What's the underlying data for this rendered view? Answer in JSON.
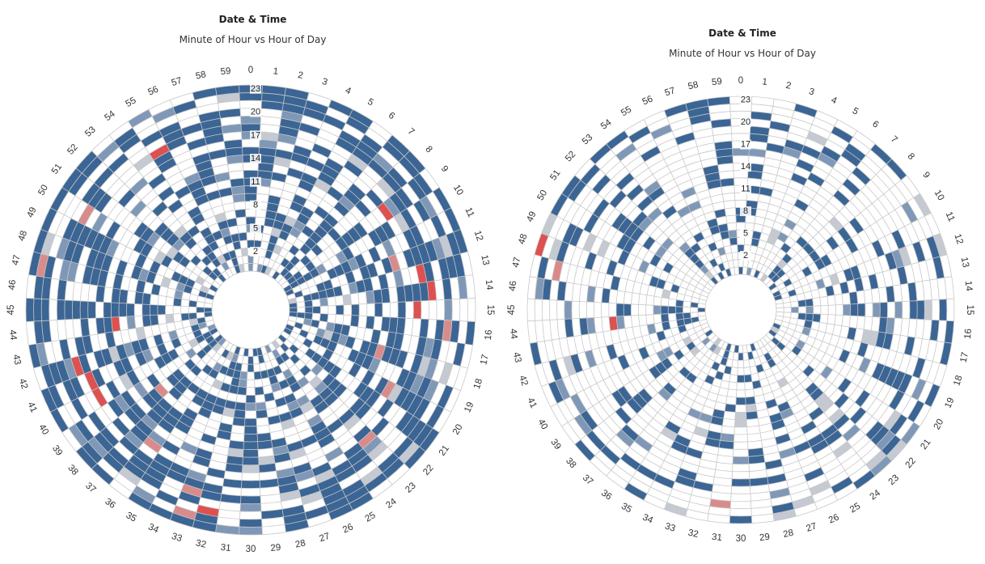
{
  "colors": {
    "dark": "#3b6594",
    "mid": "#7f98b7",
    "light": "#c4c9d2",
    "red": "#dd5150",
    "pink": "#d98b8b",
    "grid": "#c8c8c8",
    "background": "#ffffff"
  },
  "chart_data": [
    {
      "type": "heatmap",
      "subtype": "radial",
      "title": "Date & Time",
      "subtitle": "Minute of Hour vs Hour of Day",
      "angular_axis": "Minute of Hour",
      "radial_axis": "Hour of Day",
      "angular_ticks": [
        "0",
        "1",
        "2",
        "3",
        "4",
        "5",
        "6",
        "7",
        "8",
        "9",
        "10",
        "11",
        "12",
        "13",
        "14",
        "15",
        "16",
        "17",
        "18",
        "19",
        "20",
        "21",
        "22",
        "23",
        "24",
        "25",
        "26",
        "27",
        "28",
        "29",
        "30",
        "31",
        "32",
        "33",
        "34",
        "35",
        "36",
        "37",
        "38",
        "39",
        "40",
        "41",
        "42",
        "43",
        "44",
        "45",
        "46",
        "47",
        "48",
        "49",
        "50",
        "51",
        "52",
        "53",
        "54",
        "55",
        "56",
        "57",
        "58",
        "59"
      ],
      "radial_ticks": [
        "2",
        "5",
        "8",
        "11",
        "14",
        "17",
        "20",
        "23"
      ],
      "hours": 24,
      "minutes": 60,
      "density": 0.62,
      "seed": 7,
      "highlights": [
        {
          "minute": 14,
          "hour": 18,
          "level": "red"
        },
        {
          "minute": 13,
          "hour": 17,
          "level": "red"
        },
        {
          "minute": 15,
          "hour": 16,
          "level": "red"
        },
        {
          "minute": 9,
          "hour": 16,
          "level": "red"
        },
        {
          "minute": 44,
          "hour": 12,
          "level": "red"
        },
        {
          "minute": 41,
          "hour": 17,
          "level": "red"
        },
        {
          "minute": 40,
          "hour": 17,
          "level": "red"
        },
        {
          "minute": 42,
          "hour": 18,
          "level": "red"
        },
        {
          "minute": 32,
          "hour": 21,
          "level": "red"
        },
        {
          "minute": 33,
          "hour": 22,
          "level": "pink"
        },
        {
          "minute": 55,
          "hour": 18,
          "level": "red"
        },
        {
          "minute": 47,
          "hour": 22,
          "level": "pink"
        },
        {
          "minute": 16,
          "hour": 20,
          "level": "pink"
        },
        {
          "minute": 20,
          "hour": 15,
          "level": "pink"
        },
        {
          "minute": 50,
          "hour": 19,
          "level": "pink"
        },
        {
          "minute": 33,
          "hour": 19,
          "level": "pink"
        },
        {
          "minute": 36,
          "hour": 16,
          "level": "pink"
        },
        {
          "minute": 23,
          "hour": 17,
          "level": "pink"
        },
        {
          "minute": 12,
          "hour": 14,
          "level": "pink"
        },
        {
          "minute": 18,
          "hour": 12,
          "level": "pink"
        },
        {
          "minute": 38,
          "hour": 10,
          "level": "pink"
        }
      ]
    },
    {
      "type": "heatmap",
      "subtype": "radial",
      "title": "Date & Time",
      "subtitle": "Minute of Hour vs Hour of Day",
      "angular_axis": "Minute of Hour",
      "radial_axis": "Hour of Day",
      "angular_ticks": [
        "0",
        "1",
        "2",
        "3",
        "4",
        "5",
        "6",
        "7",
        "8",
        "9",
        "10",
        "11",
        "12",
        "13",
        "14",
        "15",
        "16",
        "17",
        "18",
        "19",
        "20",
        "21",
        "22",
        "23",
        "24",
        "25",
        "26",
        "27",
        "28",
        "29",
        "30",
        "31",
        "32",
        "33",
        "34",
        "35",
        "36",
        "37",
        "38",
        "39",
        "40",
        "41",
        "42",
        "43",
        "44",
        "45",
        "46",
        "47",
        "48",
        "49",
        "50",
        "51",
        "52",
        "53",
        "54",
        "55",
        "56",
        "57",
        "58",
        "59"
      ],
      "radial_ticks": [
        "2",
        "5",
        "8",
        "11",
        "14",
        "17",
        "20",
        "23"
      ],
      "hours": 24,
      "minutes": 60,
      "density": 0.33,
      "seed": 19,
      "highlights": [
        {
          "minute": 48,
          "hour": 23,
          "level": "red"
        },
        {
          "minute": 47,
          "hour": 20,
          "level": "pink"
        },
        {
          "minute": 44,
          "hour": 12,
          "level": "red"
        },
        {
          "minute": 31,
          "hour": 21,
          "level": "pink"
        },
        {
          "minute": 26,
          "hour": 21,
          "level": "light"
        },
        {
          "minute": 27,
          "hour": 22,
          "level": "light"
        },
        {
          "minute": 28,
          "hour": 23,
          "level": "light"
        },
        {
          "minute": 21,
          "hour": 20,
          "level": "light"
        },
        {
          "minute": 42,
          "hour": 19,
          "level": "light"
        }
      ]
    }
  ]
}
